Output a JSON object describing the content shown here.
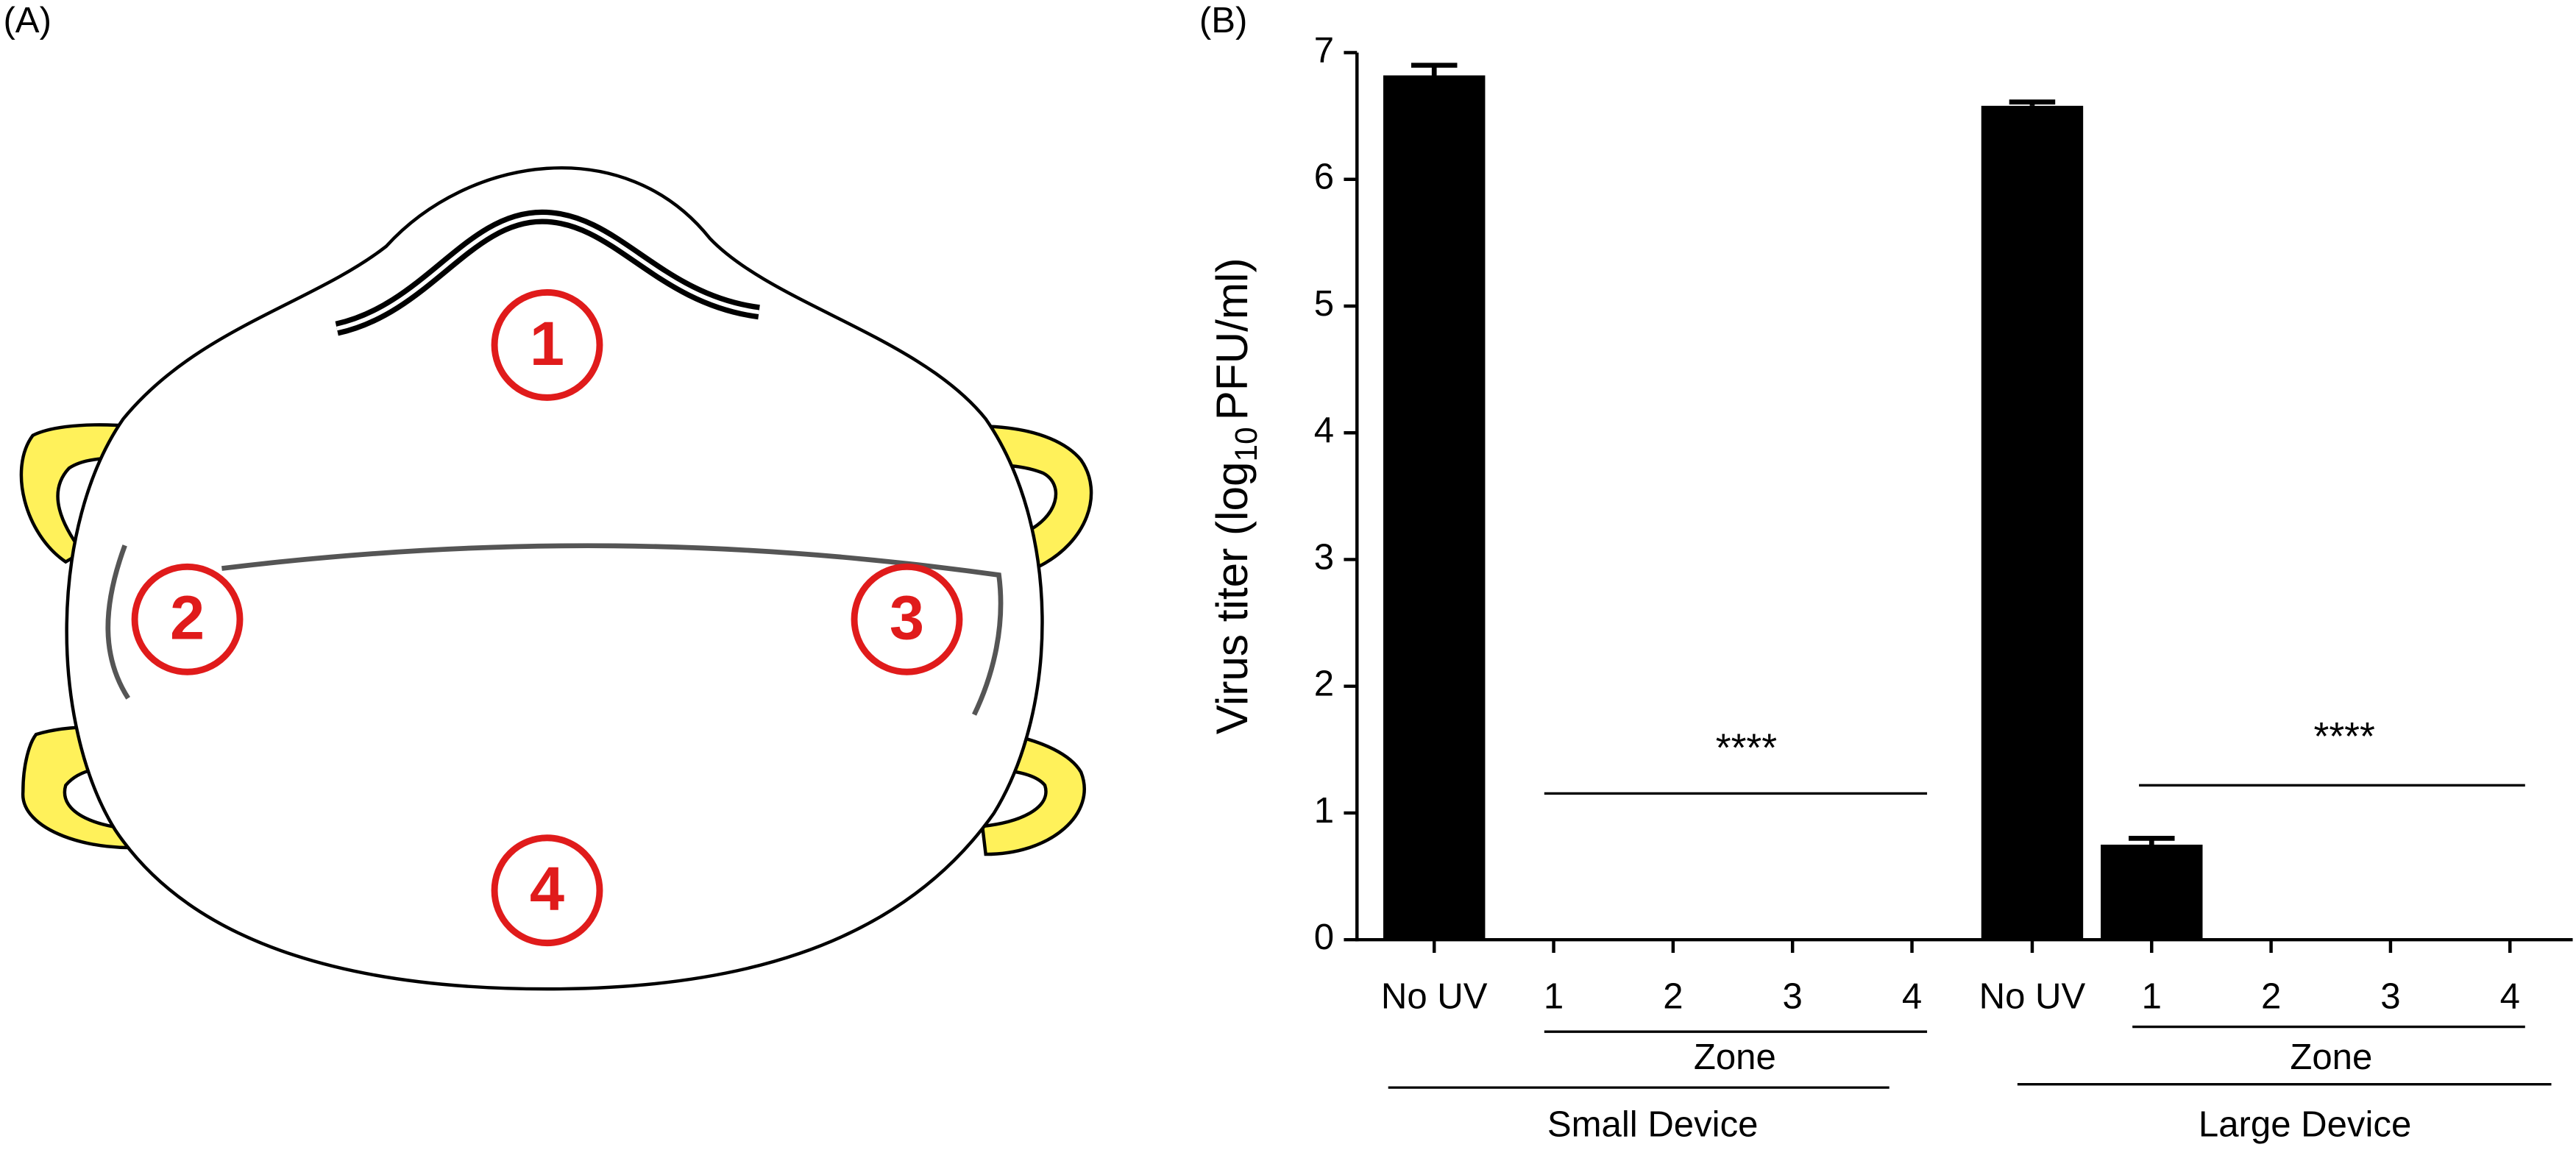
{
  "panel_a": {
    "label": "(A)",
    "zones": [
      "1",
      "2",
      "3",
      "4"
    ]
  },
  "chart_data": {
    "type": "bar",
    "panel_label": "(B)",
    "y_label": {
      "prefix": "Virus titer (log",
      "subscript": "10",
      "suffix": "PFU/ml)"
    },
    "categories": [
      "No UV",
      "1",
      "2",
      "3",
      "4",
      "No UV",
      "1",
      "2",
      "3",
      "4"
    ],
    "values": [
      6.82,
      0,
      0,
      0,
      0,
      6.58,
      0.75,
      0,
      0,
      0
    ],
    "errors": [
      0.08,
      null,
      null,
      null,
      null,
      0.03,
      0.05,
      null,
      null,
      null
    ],
    "color": "#000000",
    "ylim": [
      0,
      7
    ],
    "yticks": [
      0,
      1,
      2,
      3,
      4,
      5,
      6,
      7
    ],
    "annotations": [
      "****",
      "****",
      "Zone",
      "Zone",
      "Small Device",
      "Large Device"
    ]
  }
}
